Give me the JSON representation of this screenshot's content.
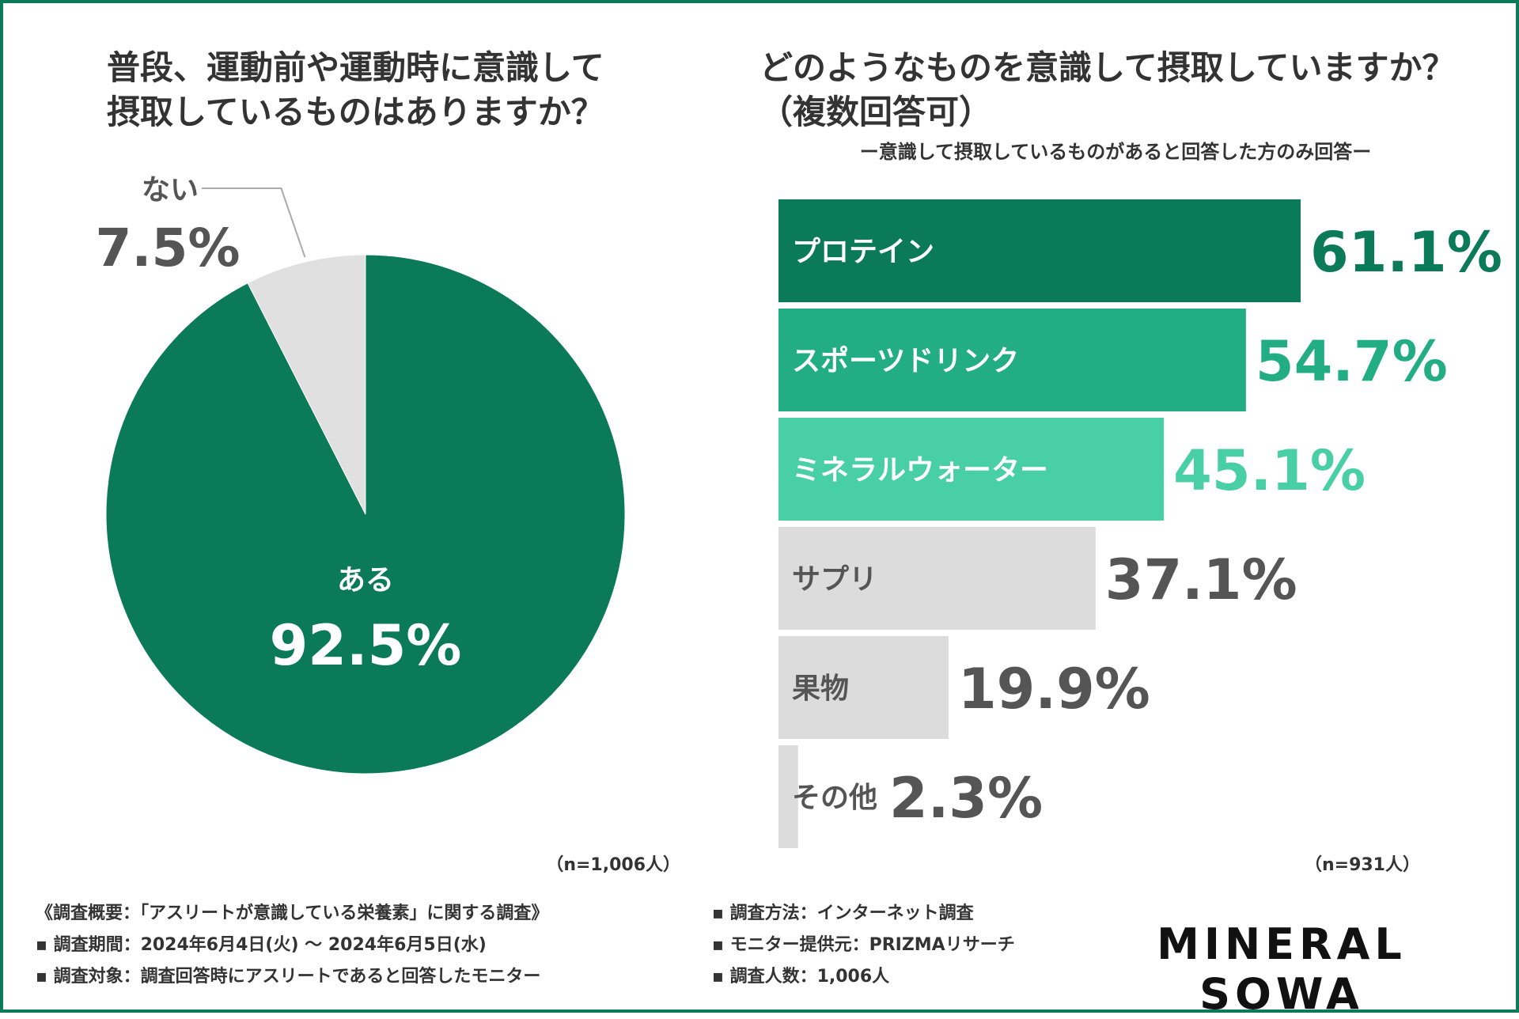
{
  "pie": {
    "title_line1": "普段、運動前や運動時に意識して",
    "title_line2": "摂取しているものはありますか？",
    "n_label": "（n=1,006人）"
  },
  "bar": {
    "title_line1": "どのようなものを意識して摂取していますか？",
    "title_line2": "（複数回答可）",
    "subtitle": "ー意識して摂取しているものがあると回答した方のみ回答ー",
    "n_label": "（n=931人）"
  },
  "footer": {
    "left": [
      "《調査概要：「アスリートが意識している栄養素」に関する調査》",
      "▪ 調査期間：2024年6月4日(火) 〜 2024年6月5日(水)",
      "▪ 調査対象：調査回答時にアスリートであると回答したモニター"
    ],
    "right": [
      "▪ 調査方法：インターネット調査",
      "▪ モニター提供元：PRIZMAリサーチ",
      "▪ 調査人数：1,006人"
    ]
  },
  "logo": "MINERAL SOWA",
  "chart_data": [
    {
      "type": "pie",
      "categories": [
        "ある",
        "ない"
      ],
      "values": [
        92.5,
        7.5
      ],
      "value_labels": [
        "92.5%",
        "7.5%"
      ],
      "colors": [
        "#0a7a58",
        "#e0e0e0"
      ]
    },
    {
      "type": "bar",
      "orientation": "horizontal",
      "categories": [
        "プロテイン",
        "スポーツドリンク",
        "ミネラルウォーター",
        "サプリ",
        "果物",
        "その他"
      ],
      "values": [
        61.1,
        54.7,
        45.1,
        37.1,
        19.9,
        2.3
      ],
      "value_labels": [
        "61.1%",
        "54.7%",
        "45.1%",
        "37.1%",
        "19.9%",
        "2.3%"
      ],
      "bar_colors": [
        "#0a7a58",
        "#22ad85",
        "#48cfa4",
        "#dcdcdc",
        "#dcdcdc",
        "#dcdcdc"
      ],
      "label_colors": [
        "#ffffff",
        "#ffffff",
        "#ffffff",
        "#555555",
        "#555555",
        "#555555"
      ],
      "value_colors": [
        "#0a7a58",
        "#22ad85",
        "#48cfa4",
        "#555555",
        "#555555",
        "#555555"
      ],
      "xlim": [
        0,
        100
      ]
    }
  ]
}
